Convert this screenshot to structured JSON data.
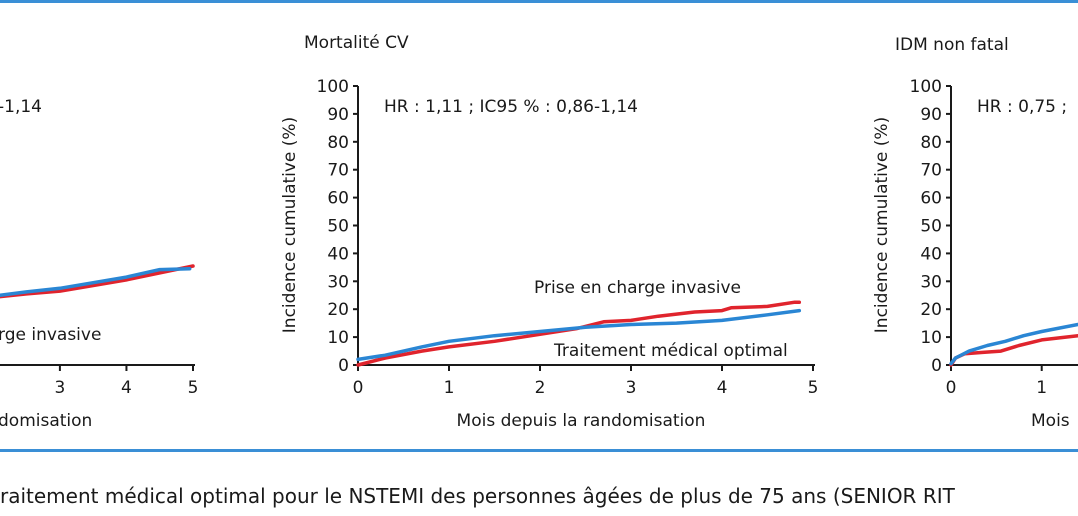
{
  "colors": {
    "frame": "#3a8fd6",
    "invasive": "#e0242d",
    "medical": "#2a86d4",
    "text": "#1a1a1a"
  },
  "caption": "raitement médical optimal pour le NSTEMI des personnes âgées de plus de 75 ans (SENIOR RIT",
  "chart_data": [
    {
      "type": "line",
      "title": "",
      "hr_text": "-1,14",
      "xlabel": "domisation",
      "ylabel": "",
      "xticks": [
        "3",
        "4",
        "5"
      ],
      "xlim": [
        2.1,
        5
      ],
      "ylim": [
        0,
        100
      ],
      "annotations": [
        {
          "text": "rge invasive"
        }
      ],
      "series": [
        {
          "name": "",
          "color": "invasive",
          "points": [
            [
              2.1,
              24.5
            ],
            [
              2.5,
              25.5
            ],
            [
              3,
              26.5
            ],
            [
              3.5,
              28.5
            ],
            [
              4,
              30.5
            ],
            [
              4.5,
              33
            ],
            [
              5,
              35.5
            ]
          ]
        },
        {
          "name": "",
          "color": "medical",
          "points": [
            [
              2.1,
              25
            ],
            [
              2.5,
              26.2
            ],
            [
              3,
              27.5
            ],
            [
              3.5,
              29.5
            ],
            [
              4,
              31.5
            ],
            [
              4.5,
              34.2
            ],
            [
              4.95,
              34.5
            ]
          ]
        }
      ]
    },
    {
      "type": "line",
      "title": "Mortalité CV",
      "hr_text": "HR : 1,11 ; IC95 % : 0,86-1,14",
      "xlabel": "Mois depuis la randomisation",
      "ylabel": "Incidence cumulative (%)",
      "xticks": [
        "0",
        "1",
        "2",
        "3",
        "4",
        "5"
      ],
      "yticks": [
        "0",
        "10",
        "20",
        "30",
        "40",
        "50",
        "60",
        "70",
        "80",
        "90",
        "100"
      ],
      "xlim": [
        0,
        5
      ],
      "ylim": [
        0,
        100
      ],
      "annotations": [
        {
          "text": "Prise en charge invasive",
          "series": "Prise en charge invasive"
        },
        {
          "text": "Traitement médical optimal",
          "series": "Traitement médical optimal"
        }
      ],
      "series": [
        {
          "name": "Prise en charge invasive",
          "color": "invasive",
          "points": [
            [
              0,
              0
            ],
            [
              0.3,
              2.5
            ],
            [
              0.7,
              5
            ],
            [
              1,
              6.5
            ],
            [
              1.5,
              8.5
            ],
            [
              2,
              11
            ],
            [
              2.4,
              13
            ],
            [
              2.7,
              15.5
            ],
            [
              3,
              16
            ],
            [
              3.3,
              17.5
            ],
            [
              3.7,
              19
            ],
            [
              4,
              19.5
            ],
            [
              4.1,
              20.5
            ],
            [
              4.5,
              21
            ],
            [
              4.8,
              22.5
            ],
            [
              4.85,
              22.5
            ]
          ]
        },
        {
          "name": "Traitement médical optimal",
          "color": "medical",
          "points": [
            [
              0,
              2
            ],
            [
              0.3,
              3.5
            ],
            [
              0.7,
              6.5
            ],
            [
              1,
              8.5
            ],
            [
              1.5,
              10.5
            ],
            [
              2,
              12
            ],
            [
              2.5,
              13.5
            ],
            [
              3,
              14.5
            ],
            [
              3.5,
              15
            ],
            [
              4,
              16
            ],
            [
              4.5,
              18
            ],
            [
              4.85,
              19.5
            ]
          ]
        }
      ]
    },
    {
      "type": "line",
      "title": "IDM non fatal",
      "hr_text": "HR : 0,75 ;",
      "xlabel": "Mois",
      "ylabel": "Incidence cumulative (%)",
      "xticks": [
        "0",
        "1"
      ],
      "yticks": [
        "0",
        "10",
        "20",
        "30",
        "40",
        "50",
        "60",
        "70",
        "80",
        "90",
        "100"
      ],
      "xlim": [
        0,
        1.4
      ],
      "ylim": [
        0,
        100
      ],
      "series": [
        {
          "name": "",
          "color": "invasive",
          "points": [
            [
              0,
              0
            ],
            [
              0.05,
              2.5
            ],
            [
              0.15,
              4
            ],
            [
              0.35,
              4.5
            ],
            [
              0.55,
              5
            ],
            [
              0.75,
              7
            ],
            [
              1,
              9
            ],
            [
              1.4,
              10.5
            ]
          ]
        },
        {
          "name": "",
          "color": "medical",
          "points": [
            [
              0,
              0.5
            ],
            [
              0.05,
              2.5
            ],
            [
              0.2,
              5
            ],
            [
              0.4,
              7
            ],
            [
              0.6,
              8.5
            ],
            [
              0.8,
              10.5
            ],
            [
              1,
              12
            ],
            [
              1.4,
              14.5
            ]
          ]
        }
      ]
    }
  ]
}
